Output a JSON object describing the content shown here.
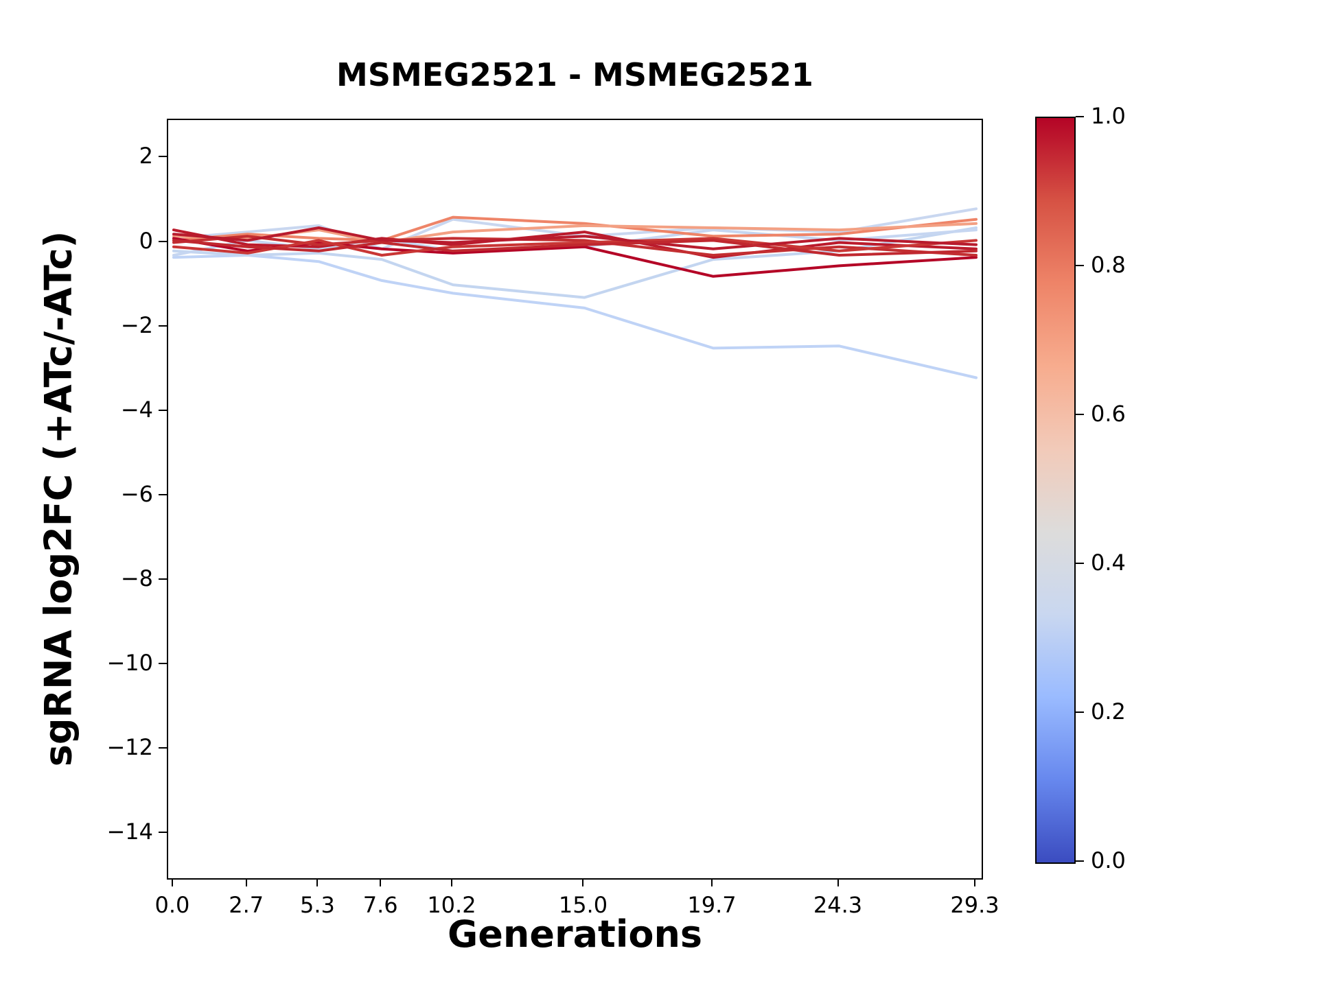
{
  "title": "MSMEG2521 - MSMEG2521",
  "chart_data": {
    "type": "line",
    "title": "MSMEG2521 - MSMEG2521",
    "xlabel": "Generations",
    "ylabel": "sgRNA log2FC (+ATc/-ATc)",
    "grid": false,
    "x": [
      0.0,
      2.7,
      5.3,
      7.6,
      10.2,
      15.0,
      19.7,
      24.3,
      29.3
    ],
    "xlim": [
      -0.2,
      29.5
    ],
    "ylim": [
      -15.05,
      2.9
    ],
    "xticks": [
      "0.0",
      "2.7",
      "5.3",
      "7.6",
      "10.2",
      "15.0",
      "19.7",
      "24.3",
      "29.3"
    ],
    "xtick_values": [
      0.0,
      2.7,
      5.3,
      7.6,
      10.2,
      15.0,
      19.7,
      24.3,
      29.3
    ],
    "yticks": [
      "2",
      "0",
      "−2",
      "−4",
      "−6",
      "−8",
      "−10",
      "−12",
      "−14"
    ],
    "ytick_values": [
      2,
      0,
      -2,
      -4,
      -6,
      -8,
      -10,
      -12,
      -14
    ],
    "series": [
      {
        "c": 0.4,
        "color": "#bfd3f6",
        "values": [
          -0.35,
          -0.3,
          -0.45,
          -0.9,
          -1.2,
          -1.55,
          -2.5,
          -2.45,
          -3.2
        ]
      },
      {
        "c": 0.42,
        "color": "#c3d5f0",
        "values": [
          -0.2,
          -0.3,
          -0.25,
          -0.4,
          -1.0,
          -1.3,
          -0.4,
          -0.2,
          0.35
        ]
      },
      {
        "c": 0.44,
        "color": "#c9d7f0",
        "values": [
          0.1,
          0.25,
          0.4,
          -0.15,
          0.55,
          0.15,
          0.35,
          0.25,
          0.8
        ]
      },
      {
        "c": 0.43,
        "color": "#c6d6f1",
        "values": [
          -0.3,
          0.05,
          -0.15,
          0.1,
          -0.2,
          -0.1,
          0.3,
          0.05,
          0.3
        ]
      },
      {
        "c": 0.75,
        "color": "#ee8468",
        "values": [
          0.05,
          0.2,
          0.1,
          0.05,
          0.6,
          0.45,
          0.15,
          0.2,
          0.55
        ]
      },
      {
        "c": 0.68,
        "color": "#f3a083",
        "values": [
          0.15,
          0.1,
          0.3,
          0.0,
          0.25,
          0.4,
          0.35,
          0.3,
          0.45
        ]
      },
      {
        "c": 0.97,
        "color": "#bb1b2c",
        "values": [
          0.3,
          -0.05,
          -0.1,
          0.1,
          -0.05,
          0.25,
          -0.35,
          0.0,
          -0.15
        ]
      },
      {
        "c": 1.0,
        "color": "#b40426",
        "values": [
          0.1,
          -0.2,
          0.0,
          -0.15,
          -0.25,
          -0.1,
          -0.8,
          -0.55,
          -0.35
        ]
      },
      {
        "c": 0.95,
        "color": "#c32e31",
        "values": [
          0.0,
          0.15,
          -0.05,
          0.05,
          0.1,
          0.05,
          -0.3,
          -0.1,
          -0.3
        ]
      },
      {
        "c": 0.93,
        "color": "#c93635",
        "values": [
          -0.1,
          -0.25,
          0.05,
          -0.3,
          -0.1,
          0.0,
          0.1,
          -0.2,
          0.05
        ]
      },
      {
        "c": 0.98,
        "color": "#b81b2d",
        "values": [
          0.2,
          0.05,
          0.35,
          0.05,
          0.0,
          0.15,
          -0.15,
          0.1,
          -0.05
        ]
      },
      {
        "c": 0.96,
        "color": "#c0282f",
        "values": [
          0.05,
          -0.1,
          -0.2,
          0.0,
          -0.2,
          -0.05,
          0.05,
          -0.3,
          -0.2
        ]
      }
    ],
    "colorbar": {
      "cmap": "coolwarm",
      "tick_labels": [
        "1.0",
        "0.8",
        "0.6",
        "0.4",
        "0.2",
        "0.0"
      ],
      "tick_values": [
        1.0,
        0.8,
        0.6,
        0.4,
        0.2,
        0.0
      ],
      "stops_bottom_to_top": [
        "#3b4cc0",
        "#6788ee",
        "#9abbff",
        "#c9d7f0",
        "#dddcdb",
        "#f2cab9",
        "#f7ac8e",
        "#ee8468",
        "#d65244",
        "#b40426"
      ]
    }
  }
}
